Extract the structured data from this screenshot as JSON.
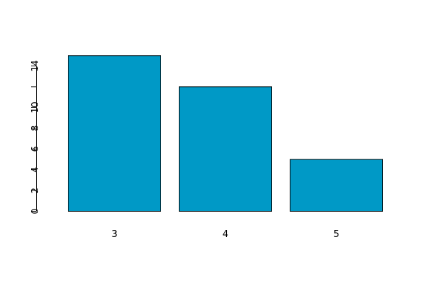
{
  "chart_data": {
    "type": "bar",
    "categories": [
      "3",
      "4",
      "5"
    ],
    "values": [
      15,
      12,
      5
    ],
    "title": "",
    "xlabel": "",
    "ylabel": "",
    "ylim": [
      0,
      15
    ],
    "yticks": [
      0,
      2,
      4,
      6,
      8,
      10,
      12,
      14
    ],
    "ytick_labels": [
      "0",
      "2",
      "4",
      "6",
      "8",
      "10",
      "",
      "14"
    ],
    "grid": false,
    "bar_color": "#0099C6",
    "bar_border_color": "#000000"
  }
}
